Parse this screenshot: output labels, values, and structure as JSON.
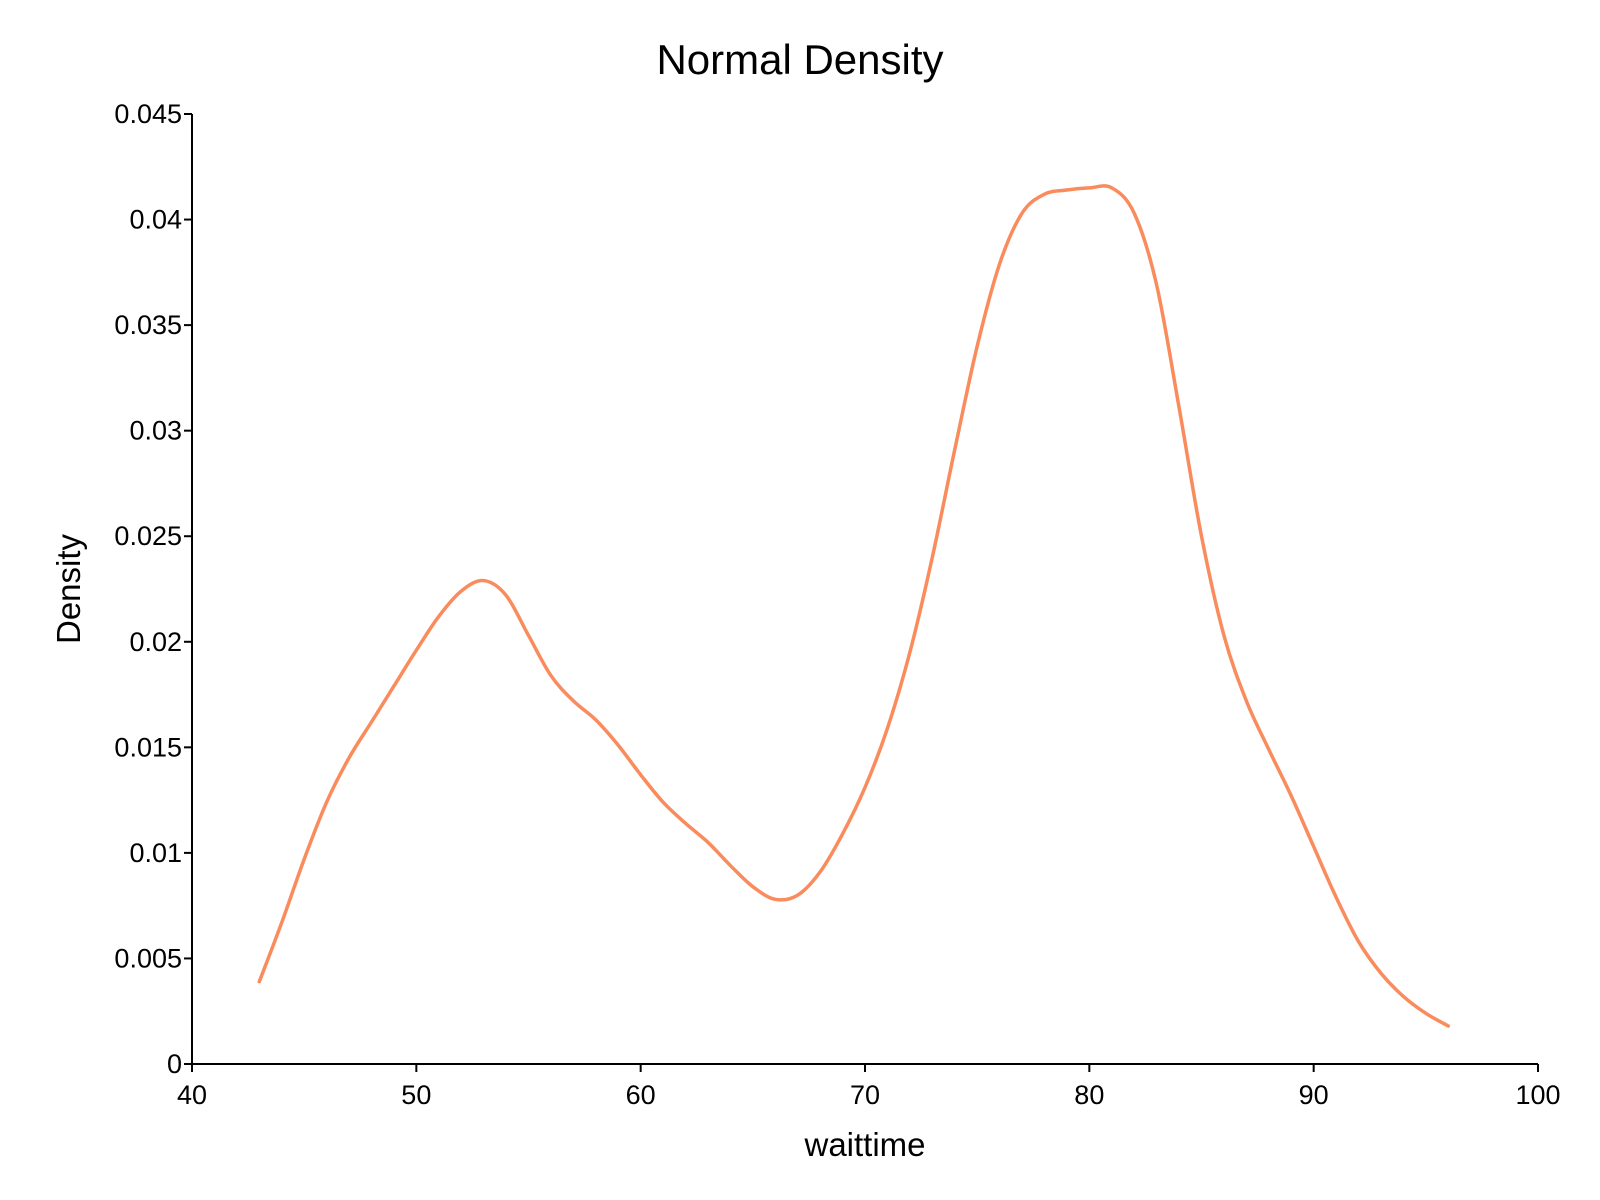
{
  "chart_data": {
    "type": "line",
    "title": "Normal Density",
    "xlabel": "waittime",
    "ylabel": "Density",
    "xlim": [
      40,
      100
    ],
    "ylim": [
      0,
      0.045
    ],
    "x_ticks": [
      40,
      50,
      60,
      70,
      80,
      90,
      100
    ],
    "x_tick_labels": [
      "40",
      "50",
      "60",
      "70",
      "80",
      "90",
      "100"
    ],
    "y_ticks": [
      0,
      0.005,
      0.01,
      0.015,
      0.02,
      0.025,
      0.03,
      0.035,
      0.04,
      0.045
    ],
    "y_tick_labels": [
      "0",
      "0.005",
      "0.01",
      "0.015",
      "0.02",
      "0.025",
      "0.03",
      "0.035",
      "0.04",
      "0.045"
    ],
    "grid": false,
    "legend": "none",
    "colors": {
      "line": "#F98B5C",
      "axis": "#000000"
    },
    "series": [
      {
        "x": [
          43,
          44,
          45,
          46,
          47,
          48,
          49,
          50,
          51,
          52,
          53,
          54,
          55,
          56,
          57,
          58,
          59,
          60,
          61,
          62,
          63,
          64,
          65,
          66,
          67,
          68,
          69,
          70,
          71,
          72,
          73,
          74,
          75,
          76,
          77,
          78,
          79,
          80,
          81,
          82,
          83,
          84,
          85,
          86,
          87,
          88,
          89,
          90,
          91,
          92,
          93,
          94,
          95,
          96
        ],
        "y": [
          0.0039,
          0.0067,
          0.0097,
          0.0124,
          0.0145,
          0.0162,
          0.0179,
          0.0196,
          0.0212,
          0.0224,
          0.0229,
          0.0222,
          0.0203,
          0.0184,
          0.0172,
          0.0163,
          0.0151,
          0.0137,
          0.0124,
          0.0114,
          0.0105,
          0.0094,
          0.0084,
          0.0078,
          0.008,
          0.0091,
          0.0109,
          0.0131,
          0.0159,
          0.0195,
          0.024,
          0.0291,
          0.034,
          0.0379,
          0.0403,
          0.0412,
          0.0414,
          0.0415,
          0.0415,
          0.0403,
          0.0369,
          0.0311,
          0.025,
          0.0203,
          0.0172,
          0.0149,
          0.0127,
          0.0103,
          0.0079,
          0.0058,
          0.0043,
          0.0032,
          0.0024,
          0.0018
        ]
      }
    ]
  }
}
